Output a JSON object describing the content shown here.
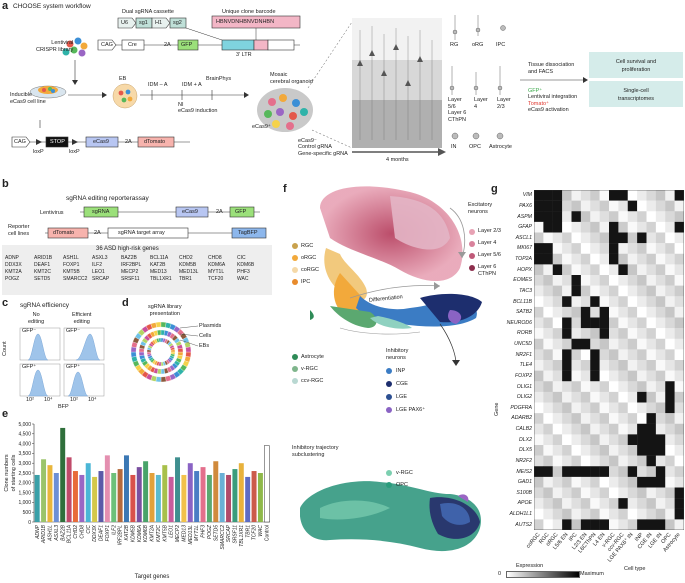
{
  "panel_a": {
    "label": "a",
    "title": "CHOOSE system workflow",
    "dual_cassette": "Dual sgRNA cassette",
    "cassette_parts": [
      "U6",
      "sg1",
      "H1",
      "sg2"
    ],
    "barcode_title": "Unique clone barcode",
    "barcode_seq": "HBNVDNHBNVDNHBN",
    "cag": "CAG",
    "cre": "Cre",
    "t2a": "2A",
    "gfp": "GFP",
    "ltr": "3′ LTR",
    "library": "Lentiviral\nCRISPR library",
    "eb": "EB",
    "idm_a": "IDM + A",
    "brainphys": "BrainPhys",
    "idm_minus": "IDM – A",
    "ni": "NI",
    "induction": "eCas9 induction",
    "organoid": "Mosaic\ncerebral organoid",
    "inducible": "Inducible\neCas9 cell line",
    "stop": "STOP",
    "loxp1": "loxP",
    "loxp2": "loxP",
    "ecas9": "eCas9",
    "dtomato": "dTomato",
    "ecas9_pos": "eCas9⁺",
    "ecas9_neg": "eCas9⁻",
    "ctrl": "Control gRNA\nGene-specific gRNA",
    "months": "4 months",
    "cell_types": [
      "RG",
      "oRG",
      "IPC"
    ],
    "layers": [
      "Layer\n5/6\nLayer 6\nCThPN",
      "Layer\n4",
      "Layer\n2/3"
    ],
    "bottom_cells": [
      "IN",
      "OPC",
      "Astrocyte"
    ],
    "dissociation": "Tissue dissociation\nand FACS",
    "gfp_plus": "GFP⁺",
    "gfp_text": "Lentiviral integration",
    "tomato_plus": "Tomato⁺",
    "tomato_text": "eCas9 activation",
    "out1": "Cell survival and\nproliferation",
    "out2": "Single-cell\ntranscriptomes"
  },
  "panel_b": {
    "label": "b",
    "title": "sgRNA editing reporterassay",
    "lentivirus": "Lentivirus",
    "sgrna": "sgRNA",
    "ecas9": "eCas9",
    "t2a": "2A",
    "gfp": "GFP",
    "reporter": "Reporter\ncell lines",
    "dtomato": "dTomato",
    "target": "sgRNA target array",
    "tagbfp": "TagBFP",
    "genes_title": "36 ASD high-risk genes",
    "genes": [
      [
        "ADNP",
        "ARID1B",
        "ASH1L",
        "ASXL3",
        "BAZ2B",
        "BCL11A",
        "CHD2",
        "CHD8",
        "CIC"
      ],
      [
        "DDX3X",
        "DEAF1",
        "FOXP1",
        "ILF2",
        "IRF2BPL",
        "KAT2B",
        "KDM5B",
        "KDM6A",
        "KDM6B"
      ],
      [
        "KMT2A",
        "KMT2C",
        "KMT5B",
        "LEO1",
        "MECP2",
        "MED13",
        "MED13L",
        "MYT1L",
        "PHF3"
      ],
      [
        "POGZ",
        "SETD5",
        "SMARCC2",
        "SRCAP",
        "SRSF11",
        "TBL1XR1",
        "TBR1",
        "TCF20",
        "WAC"
      ]
    ]
  },
  "panel_c": {
    "label": "c",
    "title": "sgRNA efficiency",
    "col1": "No\nediting",
    "col2": "Efficient\nediting",
    "gfp_neg": "GFP⁻",
    "gfp_pos": "GFP⁺",
    "ylabel": "Count",
    "xlabel": "BFP",
    "ticks": [
      "10²",
      "10⁴",
      "10²",
      "10⁴"
    ]
  },
  "panel_d": {
    "label": "d",
    "title": "sgRNA library\npresentation",
    "rings": [
      "Plasmids",
      "Cells",
      "EBs"
    ]
  },
  "panel_e": {
    "label": "e",
    "chart_data": {
      "type": "bar",
      "ylabel": "Clone numbers\nof starting cells",
      "xlabel": "Target genes",
      "ylim": [
        0,
        5000
      ],
      "yticks": [
        "0",
        "500",
        "1,000",
        "1,500",
        "2,000",
        "2,500",
        "3,000",
        "3,500",
        "4,000",
        "4,500",
        "5,000"
      ],
      "categories": [
        "ADNP",
        "ARID1B",
        "ASH1L",
        "ASXL3",
        "BAZ2B",
        "BCL11A",
        "CHD2",
        "CHD8",
        "CIC",
        "DDX3X",
        "DEAF1",
        "FOXP1",
        "ILF2",
        "IRF2BPL",
        "KAT2B",
        "KDM5B",
        "KDM6A",
        "KDM6B",
        "KMT2A",
        "KMT2C",
        "KMT5B",
        "LEO1",
        "MECP2",
        "MED13",
        "MED13L",
        "MYT1L",
        "PHF3",
        "POGZ",
        "SETD5",
        "SMARCC2",
        "SRCAP",
        "SRSF11",
        "TBL1XR1",
        "TBR1",
        "TCF20",
        "WAC",
        "Control"
      ],
      "values": [
        2400,
        3200,
        2900,
        2500,
        4800,
        3300,
        2600,
        2400,
        3000,
        2300,
        2600,
        3400,
        2500,
        2700,
        3400,
        2400,
        2800,
        3100,
        2500,
        2400,
        2900,
        2300,
        3300,
        2400,
        3000,
        2600,
        2800,
        2400,
        3100,
        2500,
        2400,
        2700,
        3000,
        2300,
        2600,
        2500,
        3900
      ]
    }
  },
  "panel_f": {
    "label": "f",
    "excitatory": "Excitatory\nneurons",
    "exc_layers": [
      "Layer 2/3",
      "Layer 4",
      "Layer 5/6",
      "Layer 6\nCThPN"
    ],
    "progenitors": [
      "RGC",
      "oRGC",
      "coRGC",
      "IPC"
    ],
    "differentiation": "Differentiation",
    "inhibitory": "Inhibitory\nneurons",
    "inh_types": [
      "INP",
      "CGE",
      "LGE",
      "LGE PAX6⁺"
    ],
    "glia": [
      "Astrocyte",
      "v-RGC",
      "ccv-RGC"
    ],
    "sub_title": "Inhibitory trajectory\nsubclustering",
    "sub_legend": [
      "v-RGC",
      "OPC"
    ]
  },
  "panel_g": {
    "label": "g",
    "genes": [
      "VIM",
      "PAX6",
      "ASPM",
      "GFAP",
      "ASCL1",
      "MKI67",
      "TOP2A",
      "HOPX",
      "EOMES",
      "TAC3",
      "BCL11B",
      "SATB2",
      "NEUROD6",
      "RORB",
      "UNC5D",
      "NR2F1",
      "TLE4",
      "FOXP2",
      "OLIG1",
      "OLIG2",
      "PDGFRA",
      "ADARB2",
      "CALB2",
      "DLX2",
      "DLX5",
      "NR2F2",
      "MEIS2",
      "GAD1",
      "S100B",
      "APOE",
      "ALDH1L1",
      "AUTS2"
    ],
    "cell_types": [
      "coRGC",
      "RGC",
      "oRGC",
      "L5/6 EN",
      "IPC",
      "L2/3 EN",
      "L6CThPN",
      "L4 EN",
      "v-RGC",
      "ccv-RGC",
      "LGE PAX6⁺ IN",
      "INP",
      "CGE IN",
      "LGE IN",
      "OPC",
      "Astrocyte"
    ],
    "ylabel": "Gene",
    "xlabel": "Cell type",
    "legend_title": "Expression",
    "legend_min": "0",
    "legend_max": "Maximum"
  }
}
